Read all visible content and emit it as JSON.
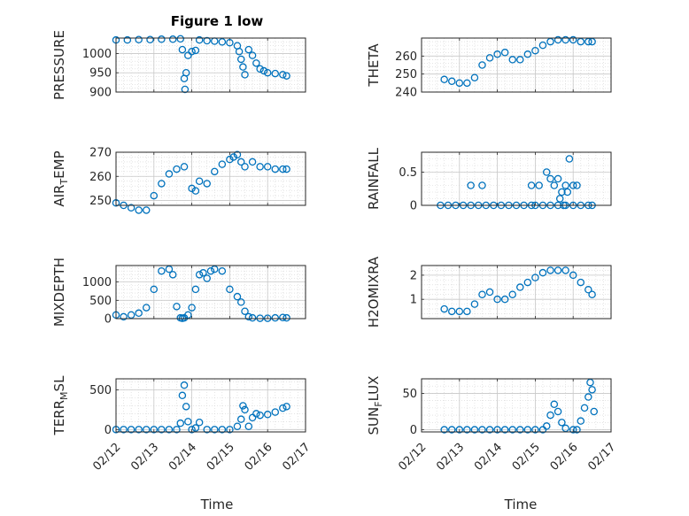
{
  "figure": {
    "title": "Figure 1 low",
    "xlabel": "Time"
  },
  "colors": {
    "marker": "#0072BD",
    "grid": "#d4d4d4",
    "axis": "#262626"
  },
  "chart_data": [
    {
      "type": "scatter",
      "ylabel": "PRESSURE",
      "ylabel_sub": "",
      "ylabel_tail": "",
      "xlim": [
        12,
        17
      ],
      "xticks": [],
      "ylim": [
        900,
        1040
      ],
      "yticks": [
        900,
        950,
        1000
      ],
      "series": [
        {
          "x": [
            12.0,
            12.3,
            12.6,
            12.9,
            13.2,
            13.5,
            13.7,
            13.75,
            13.8,
            13.82,
            13.85,
            13.9,
            14.0,
            14.1,
            14.2,
            14.4,
            14.6,
            14.8,
            15.0,
            15.2,
            15.25,
            15.3,
            15.35,
            15.4,
            15.5,
            15.6,
            15.7,
            15.8,
            15.9,
            16.0,
            16.2,
            16.4,
            16.5
          ],
          "y": [
            1035,
            1035,
            1036,
            1036,
            1037,
            1037,
            1038,
            1010,
            935,
            907,
            950,
            995,
            1005,
            1008,
            1035,
            1033,
            1032,
            1030,
            1028,
            1020,
            1005,
            985,
            965,
            945,
            1010,
            995,
            975,
            960,
            955,
            950,
            948,
            945,
            942
          ]
        }
      ]
    },
    {
      "type": "scatter",
      "ylabel": "THETA",
      "ylabel_sub": "",
      "ylabel_tail": "",
      "xlim": [
        12,
        17
      ],
      "xticks": [],
      "ylim": [
        240,
        270
      ],
      "yticks": [
        240,
        250,
        260
      ],
      "series": [
        {
          "x": [
            12.6,
            12.8,
            13.0,
            13.2,
            13.4,
            13.6,
            13.8,
            14.0,
            14.2,
            14.4,
            14.6,
            14.8,
            15.0,
            15.2,
            15.4,
            15.6,
            15.8,
            16.0,
            16.2,
            16.4,
            16.5
          ],
          "y": [
            247,
            246,
            245,
            245,
            248,
            255,
            259,
            261,
            262,
            258,
            258,
            261,
            263,
            266,
            268,
            269,
            269,
            269,
            268,
            268,
            268
          ]
        }
      ]
    },
    {
      "type": "scatter",
      "ylabel": "AIR",
      "ylabel_sub": "T",
      "ylabel_tail": "EMP",
      "xlim": [
        12,
        17
      ],
      "xticks": [],
      "ylim": [
        248,
        270
      ],
      "yticks": [
        250,
        260,
        270
      ],
      "series": [
        {
          "x": [
            12.0,
            12.2,
            12.4,
            12.6,
            12.8,
            13.0,
            13.2,
            13.4,
            13.6,
            13.8,
            14.0,
            14.1,
            14.2,
            14.4,
            14.6,
            14.8,
            15.0,
            15.1,
            15.2,
            15.3,
            15.4,
            15.6,
            15.8,
            16.0,
            16.2,
            16.4,
            16.5
          ],
          "y": [
            249,
            248,
            247,
            246,
            246,
            252,
            257,
            261,
            263,
            264,
            255,
            254,
            258,
            257,
            262,
            265,
            267,
            268,
            269,
            266,
            264,
            266,
            264,
            264,
            263,
            263,
            263
          ]
        }
      ]
    },
    {
      "type": "scatter",
      "ylabel": "RAINFALL",
      "ylabel_sub": "",
      "ylabel_tail": "",
      "xlim": [
        12,
        17
      ],
      "xticks": [],
      "ylim": [
        0,
        0.8
      ],
      "yticks": [
        0,
        0.5
      ],
      "series": [
        {
          "x": [
            12.5,
            12.7,
            12.9,
            13.1,
            13.3,
            13.5,
            13.7,
            13.9,
            14.1,
            14.3,
            14.5,
            14.7,
            14.9,
            15.0,
            15.2,
            15.4,
            15.6,
            15.8,
            16.0,
            16.2,
            16.4,
            16.5,
            13.3,
            13.6,
            14.9,
            15.1,
            15.3,
            15.4,
            15.5,
            15.6,
            15.7,
            15.8,
            15.9,
            16.0,
            16.1,
            15.75,
            15.65,
            15.85
          ],
          "y": [
            0,
            0,
            0,
            0,
            0,
            0,
            0,
            0,
            0,
            0,
            0,
            0,
            0,
            0,
            0,
            0,
            0,
            0,
            0,
            0,
            0,
            0,
            0.3,
            0.3,
            0.3,
            0.3,
            0.5,
            0.4,
            0.3,
            0.4,
            0.2,
            0.3,
            0.7,
            0.3,
            0.3,
            0,
            0.1,
            0.2
          ]
        }
      ]
    },
    {
      "type": "scatter",
      "ylabel": "MIXDEPTH",
      "ylabel_sub": "",
      "ylabel_tail": "",
      "xlim": [
        12,
        17
      ],
      "xticks": [],
      "ylim": [
        0,
        1450
      ],
      "yticks": [
        0,
        500,
        1000
      ],
      "series": [
        {
          "x": [
            12.0,
            12.2,
            12.4,
            12.6,
            12.8,
            13.0,
            13.2,
            13.4,
            13.5,
            13.6,
            13.7,
            13.75,
            13.8,
            13.9,
            14.0,
            14.1,
            14.2,
            14.3,
            14.4,
            14.5,
            14.6,
            14.8,
            15.0,
            15.2,
            15.3,
            15.4,
            15.5,
            15.6,
            15.8,
            16.0,
            16.2,
            16.4,
            16.5
          ],
          "y": [
            100,
            50,
            100,
            150,
            300,
            800,
            1300,
            1350,
            1200,
            330,
            20,
            10,
            20,
            100,
            300,
            800,
            1200,
            1250,
            1100,
            1300,
            1350,
            1300,
            800,
            600,
            450,
            200,
            50,
            20,
            10,
            10,
            20,
            30,
            20
          ]
        }
      ]
    },
    {
      "type": "scatter",
      "ylabel": "H2OMIXRA",
      "ylabel_sub": "",
      "ylabel_tail": "",
      "xlim": [
        12,
        17
      ],
      "xticks": [],
      "ylim": [
        0.2,
        2.4
      ],
      "yticks": [
        1,
        2
      ],
      "series": [
        {
          "x": [
            12.6,
            12.8,
            13.0,
            13.2,
            13.4,
            13.6,
            13.8,
            14.0,
            14.2,
            14.4,
            14.6,
            14.8,
            15.0,
            15.2,
            15.4,
            15.6,
            15.8,
            16.0,
            16.2,
            16.4,
            16.5
          ],
          "y": [
            0.6,
            0.5,
            0.5,
            0.5,
            0.8,
            1.2,
            1.3,
            1.0,
            1.0,
            1.2,
            1.5,
            1.7,
            1.9,
            2.1,
            2.2,
            2.2,
            2.2,
            2.0,
            1.7,
            1.4,
            1.2
          ]
        }
      ]
    },
    {
      "type": "scatter",
      "ylabel": "TERR",
      "ylabel_sub": "M",
      "ylabel_tail": "SL",
      "xlim": [
        12,
        17
      ],
      "xticks": [
        "02/12",
        "02/13",
        "02/14",
        "02/15",
        "02/16",
        "02/17"
      ],
      "ylim": [
        -30,
        640
      ],
      "yticks": [
        0,
        500
      ],
      "series": [
        {
          "x": [
            12.0,
            12.2,
            12.4,
            12.6,
            12.8,
            13.0,
            13.2,
            13.4,
            13.6,
            13.7,
            13.75,
            13.8,
            13.85,
            13.9,
            14.0,
            14.1,
            14.2,
            14.4,
            14.6,
            14.8,
            15.0,
            15.2,
            15.3,
            15.35,
            15.4,
            15.5,
            15.6,
            15.7,
            15.8,
            16.0,
            16.2,
            16.4,
            16.5
          ],
          "y": [
            0,
            0,
            0,
            0,
            0,
            0,
            0,
            0,
            0,
            80,
            430,
            560,
            290,
            100,
            0,
            20,
            90,
            0,
            0,
            0,
            0,
            40,
            130,
            300,
            250,
            40,
            150,
            200,
            180,
            190,
            220,
            270,
            290
          ]
        }
      ]
    },
    {
      "type": "scatter",
      "ylabel": "SUN",
      "ylabel_sub": "F",
      "ylabel_tail": "LUX",
      "xlim": [
        12,
        17
      ],
      "xticks": [
        "02/12",
        "02/13",
        "02/14",
        "02/15",
        "02/16",
        "02/17"
      ],
      "ylim": [
        -3,
        70
      ],
      "yticks": [
        0,
        50
      ],
      "series": [
        {
          "x": [
            12.6,
            12.8,
            13.0,
            13.2,
            13.4,
            13.6,
            13.8,
            14.0,
            14.2,
            14.4,
            14.6,
            14.8,
            15.0,
            15.2,
            15.3,
            15.4,
            15.5,
            15.6,
            15.7,
            15.8,
            16.0,
            16.1,
            16.2,
            16.3,
            16.4,
            16.45,
            16.5,
            16.55
          ],
          "y": [
            0,
            0,
            0,
            0,
            0,
            0,
            0,
            0,
            0,
            0,
            0,
            0,
            0,
            0,
            5,
            20,
            35,
            25,
            10,
            2,
            0,
            0,
            12,
            30,
            45,
            65,
            55,
            25
          ]
        }
      ]
    }
  ]
}
